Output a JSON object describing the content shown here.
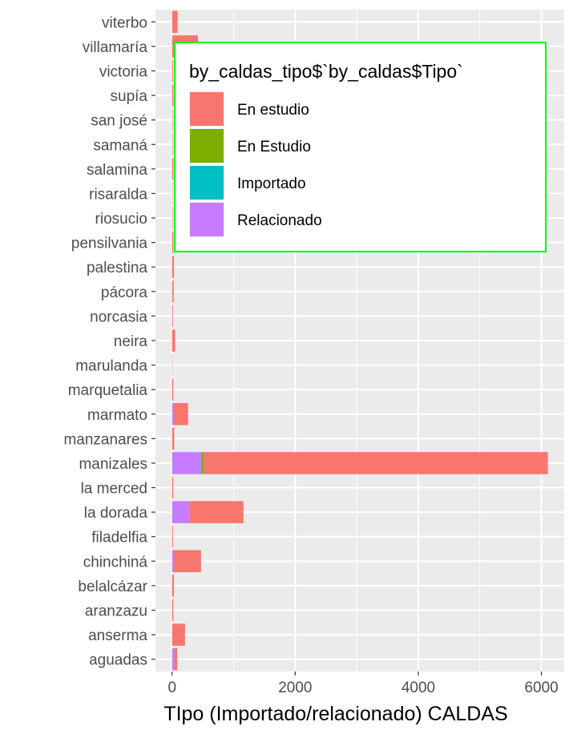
{
  "chart_data": {
    "type": "bar",
    "orientation": "horizontal",
    "stacked": true,
    "title": "",
    "xlabel": "TIpo (Importado/relacionado) CALDAS",
    "ylabel": "",
    "xlim": [
      -270,
      6370
    ],
    "xticks": [
      0,
      2000,
      4000,
      6000
    ],
    "xtick_labels": [
      "0",
      "2000",
      "4000",
      "6000"
    ],
    "grid": true,
    "panel_background": "#ebebeb",
    "categories": [
      "aguadas",
      "anserma",
      "aranzazu",
      "belalcázar",
      "chinchiná",
      "filadelfia",
      "la dorada",
      "la merced",
      "manizales",
      "manzanares",
      "marmato",
      "marquetalia",
      "marulanda",
      "neira",
      "norcasia",
      "pácora",
      "palestina",
      "pensilvania",
      "riosucio",
      "risaralda",
      "salamina",
      "samaná",
      "san josé",
      "supía",
      "victoria",
      "villamaría",
      "viterbo"
    ],
    "legend": {
      "title": "by_caldas_tipo$`by_caldas$Tipo`",
      "position": "inside top-right",
      "border_color": "#00ff00"
    },
    "series": [
      {
        "name": "Relacionado",
        "color": "#c77cff",
        "values": [
          35,
          0,
          0,
          0,
          30,
          0,
          280,
          0,
          470,
          0,
          30,
          0,
          0,
          0,
          5,
          0,
          0,
          0,
          0,
          0,
          0,
          0,
          0,
          0,
          0,
          0,
          0
        ]
      },
      {
        "name": "Importado",
        "color": "#00bfc4",
        "values": [
          0,
          0,
          0,
          0,
          0,
          0,
          0,
          0,
          10,
          0,
          0,
          0,
          0,
          0,
          0,
          0,
          0,
          0,
          0,
          0,
          0,
          0,
          0,
          0,
          0,
          0,
          0
        ]
      },
      {
        "name": "En Estudio",
        "color": "#7cae00",
        "values": [
          0,
          0,
          0,
          0,
          0,
          0,
          0,
          0,
          25,
          0,
          0,
          0,
          0,
          0,
          0,
          0,
          0,
          0,
          0,
          0,
          0,
          0,
          0,
          0,
          0,
          0,
          0
        ]
      },
      {
        "name": "En estudio",
        "color": "#f8766d",
        "values": [
          50,
          210,
          20,
          30,
          440,
          15,
          880,
          20,
          5600,
          35,
          230,
          20,
          5,
          50,
          10,
          25,
          30,
          20,
          10,
          5,
          20,
          10,
          10,
          20,
          15,
          420,
          90
        ]
      }
    ]
  }
}
